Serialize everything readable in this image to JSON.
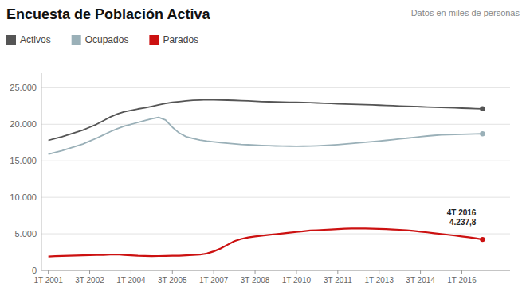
{
  "chart_data": {
    "type": "line",
    "title": "Encuesta de Población Activa",
    "subtitle": "Datos en miles de personas",
    "categories": [
      "1T 2001",
      null,
      null,
      null,
      null,
      null,
      "3T 2002",
      null,
      null,
      null,
      null,
      null,
      "1T 2004",
      null,
      null,
      null,
      null,
      null,
      "3T 2005",
      null,
      null,
      null,
      null,
      null,
      "1T 2007",
      null,
      null,
      null,
      null,
      null,
      "3T 2008",
      null,
      null,
      null,
      null,
      null,
      "1T 2010",
      null,
      null,
      null,
      null,
      null,
      "3T 2011",
      null,
      null,
      null,
      null,
      null,
      "1T 2013",
      null,
      null,
      null,
      null,
      null,
      "3T 2014",
      null,
      null,
      null,
      null,
      null,
      "1T 2016",
      null,
      null,
      null
    ],
    "series": [
      {
        "name": "Activos",
        "color": "#555555",
        "values": [
          17800,
          18050,
          18300,
          18600,
          18900,
          19200,
          19600,
          20000,
          20500,
          21000,
          21400,
          21700,
          21900,
          22100,
          22250,
          22450,
          22650,
          22850,
          23000,
          23100,
          23200,
          23280,
          23320,
          23350,
          23340,
          23320,
          23300,
          23270,
          23240,
          23200,
          23150,
          23100,
          23080,
          23060,
          23040,
          23020,
          23000,
          22980,
          22950,
          22920,
          22880,
          22850,
          22800,
          22770,
          22740,
          22710,
          22680,
          22650,
          22620,
          22580,
          22540,
          22500,
          22470,
          22440,
          22400,
          22360,
          22330,
          22300,
          22270,
          22240,
          22210,
          22180,
          22150,
          22120
        ]
      },
      {
        "name": "Ocupados",
        "color": "#9ab0b8",
        "values": [
          15900,
          16150,
          16400,
          16700,
          17000,
          17300,
          17700,
          18100,
          18550,
          19000,
          19400,
          19750,
          20000,
          20250,
          20500,
          20750,
          20950,
          20600,
          19600,
          18800,
          18300,
          18050,
          17850,
          17700,
          17600,
          17500,
          17400,
          17320,
          17250,
          17200,
          17150,
          17100,
          17070,
          17040,
          17020,
          17010,
          17000,
          17010,
          17030,
          17060,
          17100,
          17150,
          17220,
          17300,
          17380,
          17460,
          17540,
          17620,
          17710,
          17800,
          17900,
          18000,
          18100,
          18200,
          18300,
          18400,
          18480,
          18540,
          18580,
          18610,
          18640,
          18660,
          18680,
          18700
        ]
      },
      {
        "name": "Parados",
        "color": "#cc1111",
        "values": [
          1900,
          1950,
          1980,
          2000,
          2020,
          2050,
          2080,
          2100,
          2120,
          2150,
          2180,
          2100,
          2050,
          2000,
          1980,
          1950,
          1960,
          1970,
          1990,
          2000,
          2050,
          2100,
          2150,
          2300,
          2600,
          3000,
          3500,
          4000,
          4300,
          4500,
          4650,
          4750,
          4850,
          4950,
          5050,
          5150,
          5250,
          5350,
          5450,
          5500,
          5550,
          5600,
          5650,
          5700,
          5720,
          5730,
          5720,
          5700,
          5680,
          5650,
          5600,
          5550,
          5480,
          5400,
          5300,
          5200,
          5080,
          4980,
          4870,
          4760,
          4650,
          4530,
          4400,
          4237.8
        ]
      }
    ],
    "annotations": [
      "4T 2016\n4.237,8"
    ],
    "ylim": [
      0,
      27000
    ],
    "yticks": [
      0,
      {
        "value": 5000,
        "label": "5.000"
      },
      {
        "value": 10000,
        "label": "10.000"
      },
      {
        "value": 15000,
        "label": "15.000"
      },
      {
        "value": 20000,
        "label": "20.000"
      },
      {
        "value": 25000,
        "label": "25.000"
      }
    ],
    "grid": true,
    "legend": "top-left"
  }
}
